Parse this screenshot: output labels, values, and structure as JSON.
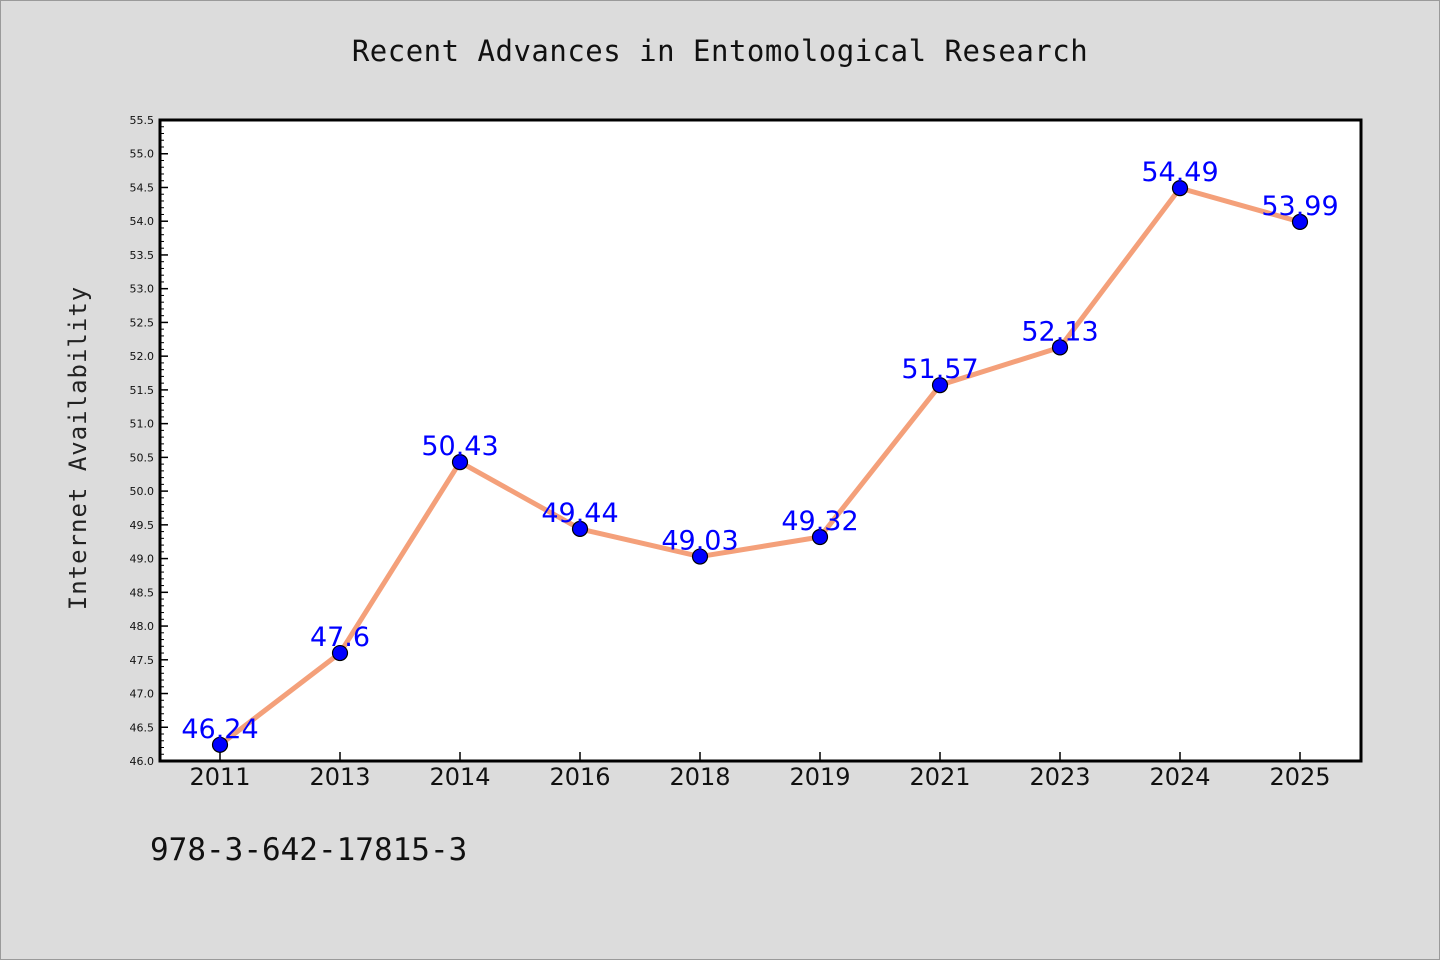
{
  "chart_data": {
    "type": "line",
    "title": "Recent Advances in Entomological Research",
    "xlabel": "",
    "ylabel": "Internet Availability",
    "categories": [
      "2011",
      "2013",
      "2014",
      "2016",
      "2018",
      "2019",
      "2021",
      "2023",
      "2024",
      "2025"
    ],
    "series": [
      {
        "values": [
          46.24,
          47.6,
          50.43,
          49.44,
          49.03,
          49.32,
          51.57,
          52.13,
          54.49,
          53.99
        ],
        "labels": [
          "46.24",
          "47.6",
          "50.43",
          "49.44",
          "49.03",
          "49.32",
          "51.57",
          "52.13",
          "54.49",
          "53.99"
        ],
        "line_color": "#f4a07a",
        "marker_color": "#0000ff"
      }
    ],
    "ylim": [
      46.0,
      55.5
    ],
    "yticks": [
      "46.0",
      "46.5",
      "47.0",
      "47.5",
      "48.0",
      "48.5",
      "49.0",
      "49.5",
      "50.0",
      "50.5",
      "51.0",
      "51.5",
      "52.0",
      "52.5",
      "53.0",
      "53.5",
      "54.0",
      "54.5",
      "55.0",
      "55.5"
    ],
    "grid": false,
    "legend": "none"
  },
  "footer": {
    "code": "978-3-642-17815-3"
  },
  "colors": {
    "background": "#dcdcdc",
    "plot_background": "#ffffff",
    "line": "#f4a07a",
    "marker": "#0000ff",
    "data_label": "#0000ff"
  }
}
